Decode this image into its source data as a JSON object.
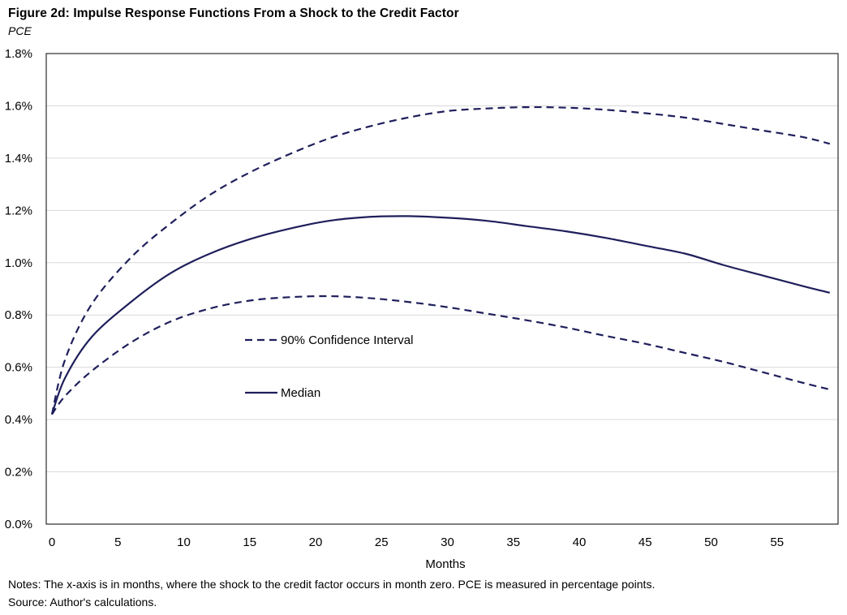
{
  "title": "Figure 2d: Impulse Response Functions From a Shock to the Credit Factor",
  "subtitle": "PCE",
  "notes": "Notes: The x-axis is in months, where the shock to the credit factor occurs in month zero. PCE is measured in percentage points.",
  "source": "Source: Author's calculations.",
  "colors": {
    "series": "#1f1f5c",
    "grid": "#d9d9d9",
    "frame": "#000000"
  },
  "chart_data": {
    "type": "line",
    "xlabel": "Months",
    "ylabel": "",
    "xlim": [
      0,
      59
    ],
    "ylim": [
      0.0,
      1.8
    ],
    "x_ticks": [
      0,
      5,
      10,
      15,
      20,
      25,
      30,
      35,
      40,
      45,
      50,
      55
    ],
    "x_tick_labels": [
      "0",
      "5",
      "10",
      "15",
      "20",
      "25",
      "30",
      "35",
      "40",
      "45",
      "50",
      "55"
    ],
    "y_ticks": [
      0.0,
      0.2,
      0.4,
      0.6,
      0.8,
      1.0,
      1.2,
      1.4,
      1.6,
      1.8
    ],
    "y_tick_labels": [
      "0.0%",
      "0.2%",
      "0.4%",
      "0.6%",
      "0.8%",
      "1.0%",
      "1.2%",
      "1.4%",
      "1.6%",
      "1.8%"
    ],
    "grid": true,
    "legend_position": "center-left",
    "series": [
      {
        "name": "90% Confidence Interval",
        "style": "dashed",
        "x": [
          0,
          1,
          3,
          6,
          9,
          12,
          15,
          18,
          21,
          24,
          27,
          30,
          33,
          36,
          39,
          42,
          45,
          48,
          51,
          54,
          57,
          59
        ],
        "values": [
          0.42,
          0.63,
          0.84,
          1.02,
          1.15,
          1.26,
          1.345,
          1.415,
          1.475,
          1.52,
          1.555,
          1.58,
          1.59,
          1.595,
          1.593,
          1.585,
          1.572,
          1.555,
          1.53,
          1.505,
          1.48,
          1.455
        ]
      },
      {
        "name": "90% Confidence Interval (lower)",
        "style": "dashed",
        "x": [
          0,
          1,
          3,
          6,
          9,
          12,
          15,
          18,
          21,
          24,
          27,
          30,
          33,
          36,
          39,
          42,
          45,
          48,
          51,
          54,
          57,
          59
        ],
        "values": [
          0.42,
          0.49,
          0.585,
          0.695,
          0.775,
          0.825,
          0.855,
          0.868,
          0.872,
          0.865,
          0.85,
          0.83,
          0.805,
          0.78,
          0.752,
          0.72,
          0.69,
          0.655,
          0.62,
          0.58,
          0.54,
          0.515
        ]
      },
      {
        "name": "Median",
        "style": "solid",
        "x": [
          0,
          1,
          3,
          6,
          9,
          12,
          15,
          18,
          21,
          24,
          27,
          30,
          33,
          36,
          39,
          42,
          45,
          48,
          51,
          54,
          57,
          59
        ],
        "values": [
          0.42,
          0.56,
          0.715,
          0.85,
          0.96,
          1.035,
          1.09,
          1.13,
          1.16,
          1.175,
          1.178,
          1.172,
          1.16,
          1.14,
          1.12,
          1.095,
          1.065,
          1.035,
          0.99,
          0.95,
          0.91,
          0.885
        ]
      }
    ],
    "legend": [
      {
        "label": "90% Confidence Interval",
        "style": "dashed"
      },
      {
        "label": "Median",
        "style": "solid"
      }
    ]
  }
}
